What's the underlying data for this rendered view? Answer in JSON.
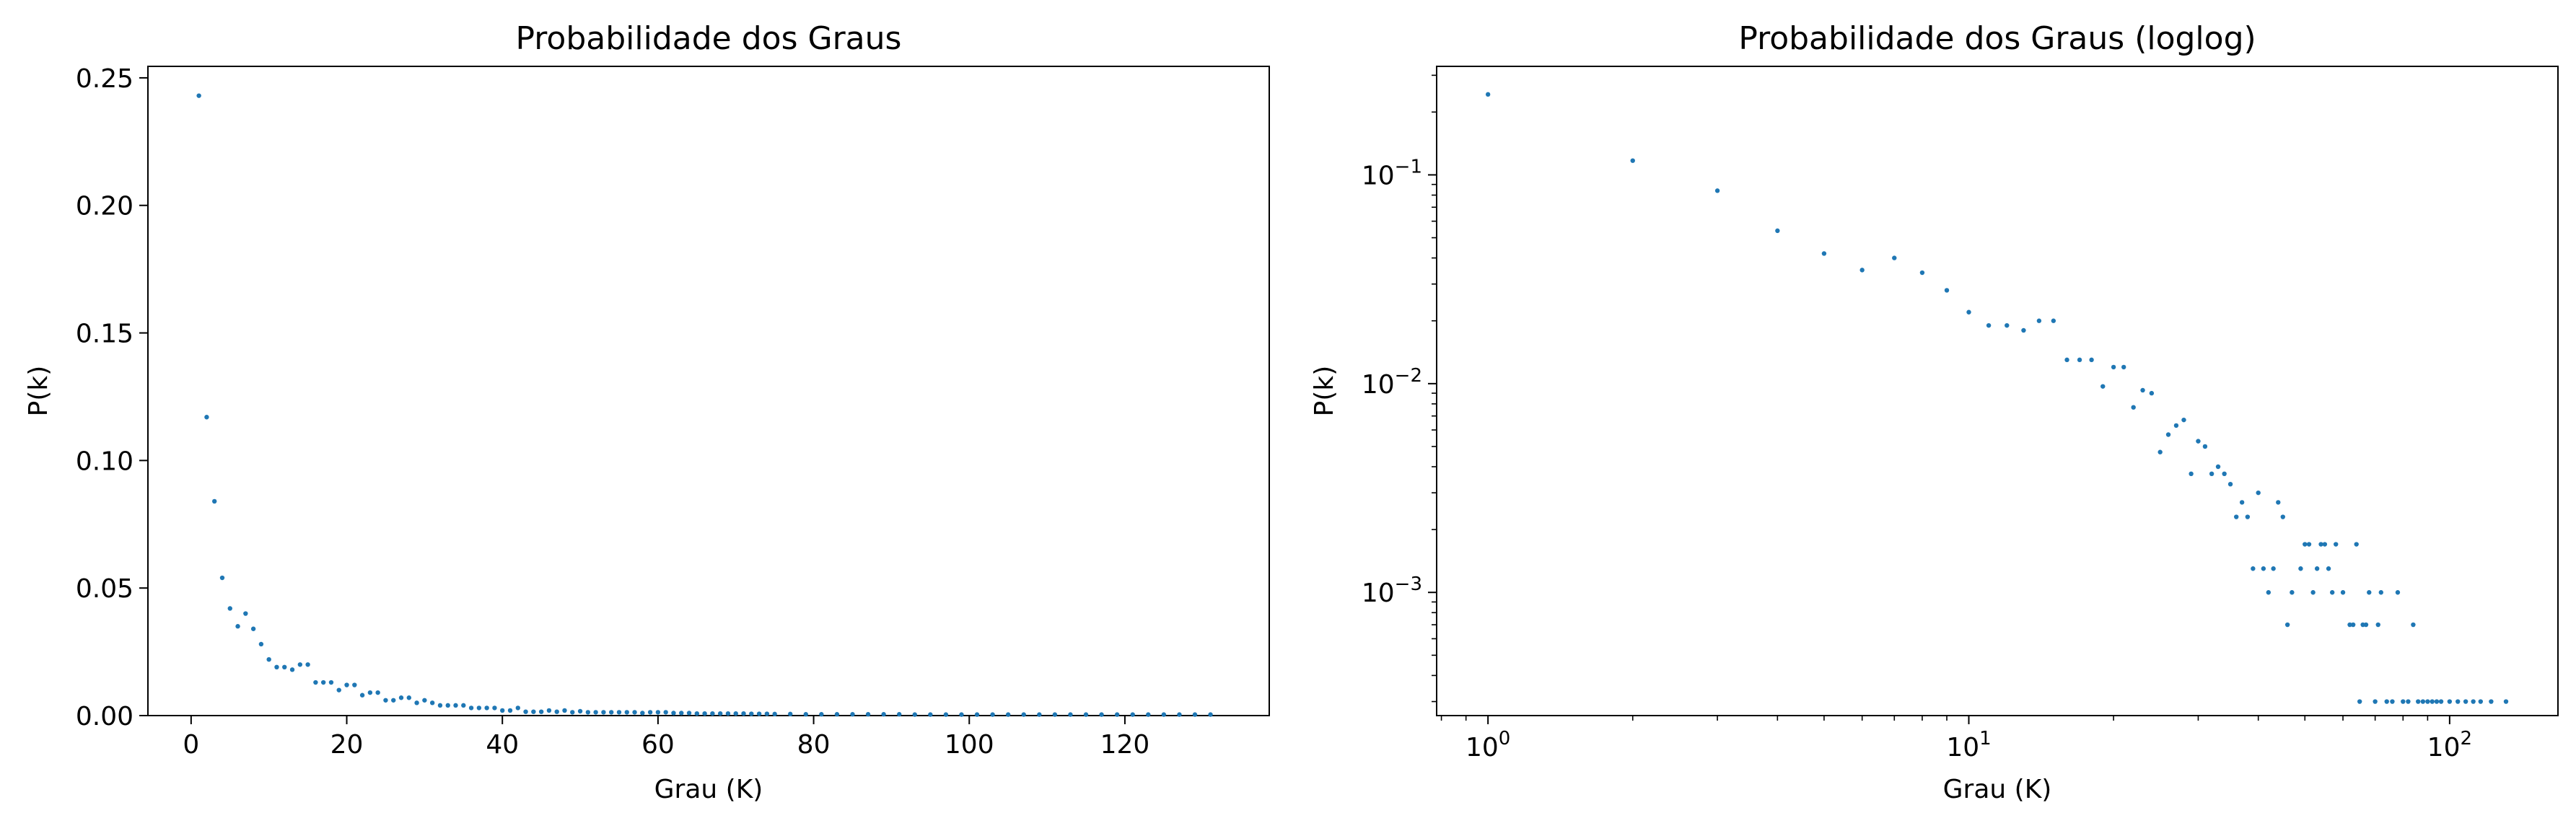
{
  "chart_data": [
    {
      "type": "scatter",
      "title": "Probabilidade dos Graus",
      "xlabel": "Grau (K)",
      "ylabel": "P(k)",
      "xscale": "linear",
      "yscale": "linear",
      "xlim": [
        -5.55,
        138.55
      ],
      "ylim": [
        0,
        0.2545
      ],
      "xticks": [
        0,
        20,
        40,
        60,
        80,
        100,
        120
      ],
      "xtick_labels": [
        "0",
        "20",
        "40",
        "60",
        "80",
        "100",
        "120"
      ],
      "yticks": [
        0.0,
        0.05,
        0.1,
        0.15,
        0.2,
        0.25
      ],
      "ytick_labels": [
        "0.00",
        "0.05",
        "0.10",
        "0.15",
        "0.20",
        "0.25"
      ],
      "grid": false,
      "legend": "none",
      "marker_color": "#1f77b4",
      "series": [
        {
          "x": [
            1,
            2,
            3,
            4,
            5,
            6,
            7,
            8,
            9,
            10,
            11,
            12,
            13,
            14,
            15,
            16,
            17,
            18,
            19,
            20,
            21,
            22,
            23,
            24,
            25,
            26,
            27,
            28,
            29,
            30,
            31,
            32,
            33,
            34,
            35,
            36,
            37,
            38,
            39,
            40,
            41,
            42,
            43,
            44,
            45,
            46,
            47,
            48,
            49,
            50,
            51,
            52,
            53,
            54,
            55,
            56,
            57,
            58,
            59,
            60,
            61,
            62,
            63,
            64,
            65,
            66,
            67,
            68,
            69,
            70,
            71,
            72,
            73,
            74,
            75,
            77,
            79,
            81,
            83,
            85,
            87,
            89,
            91,
            93,
            95,
            97,
            99,
            101,
            103,
            105,
            107,
            109,
            111,
            113,
            115,
            117,
            119,
            121,
            123,
            125,
            127,
            129,
            131
          ],
          "y": [
            0.243,
            0.117,
            0.084,
            0.054,
            0.042,
            0.035,
            0.04,
            0.034,
            0.028,
            0.022,
            0.019,
            0.019,
            0.018,
            0.02,
            0.02,
            0.013,
            0.013,
            0.013,
            0.01,
            0.012,
            0.012,
            0.008,
            0.009,
            0.009,
            0.006,
            0.006,
            0.007,
            0.007,
            0.005,
            0.006,
            0.005,
            0.004,
            0.004,
            0.004,
            0.004,
            0.003,
            0.003,
            0.003,
            0.003,
            0.002,
            0.002,
            0.003,
            0.0015,
            0.0015,
            0.0015,
            0.002,
            0.0015,
            0.002,
            0.0013,
            0.0017,
            0.0013,
            0.0013,
            0.0013,
            0.0013,
            0.0013,
            0.0013,
            0.0013,
            0.001,
            0.0013,
            0.0013,
            0.0013,
            0.001,
            0.001,
            0.001,
            0.0008,
            0.0008,
            0.0008,
            0.0008,
            0.0008,
            0.0008,
            0.0008,
            0.0007,
            0.0007,
            0.0007,
            0.0006,
            0.0006,
            0.0005,
            0.0005,
            0.0005,
            0.0005,
            0.0005,
            0.0005,
            0.0005,
            0.0004,
            0.0004,
            0.0004,
            0.0004,
            0.0004,
            0.0004,
            0.0004,
            0.0004,
            0.0004,
            0.0004,
            0.0004,
            0.0004,
            0.0004,
            0.0004,
            0.0004,
            0.0004,
            0.0004,
            0.0004,
            0.0004,
            0.0004
          ]
        }
      ]
    },
    {
      "type": "scatter",
      "title": "Probabilidade dos Graus (loglog)",
      "xlabel": "Grau (K)",
      "ylabel": "P(k)",
      "xscale": "log",
      "yscale": "log",
      "xlim": [
        0.782,
        168.0
      ],
      "ylim": [
        0.000257,
        0.331
      ],
      "xticks": [
        1,
        10,
        100
      ],
      "xtick_labels": [
        {
          "base": "10",
          "exp": "0"
        },
        {
          "base": "10",
          "exp": "1"
        },
        {
          "base": "10",
          "exp": "2"
        }
      ],
      "yticks": [
        0.001,
        0.01,
        0.1
      ],
      "ytick_labels": [
        {
          "base": "10",
          "exp": "−3"
        },
        {
          "base": "10",
          "exp": "−2"
        },
        {
          "base": "10",
          "exp": "−1"
        }
      ],
      "grid": false,
      "legend": "none",
      "marker_color": "#1f77b4",
      "series": [
        {
          "x": [
            1,
            2,
            3,
            4,
            5,
            6,
            7,
            8,
            9,
            10,
            11,
            12,
            13,
            14,
            15,
            16,
            17,
            18,
            19,
            20,
            21,
            22,
            23,
            24,
            25,
            26,
            27,
            28,
            29,
            30,
            31,
            32,
            33,
            34,
            35,
            36,
            37,
            38,
            39,
            40,
            41,
            42,
            43,
            44,
            45,
            46,
            47,
            49,
            50,
            51,
            52,
            53,
            54,
            55,
            56,
            57,
            58,
            60,
            62,
            63,
            64,
            65,
            66,
            67,
            68,
            70,
            71,
            72,
            74,
            76,
            78,
            80,
            82,
            84,
            86,
            88,
            90,
            92,
            94,
            96,
            100,
            104,
            108,
            112,
            116,
            122,
            131
          ],
          "y": [
            0.243,
            0.117,
            0.084,
            0.054,
            0.042,
            0.035,
            0.04,
            0.034,
            0.028,
            0.022,
            0.019,
            0.019,
            0.018,
            0.02,
            0.02,
            0.013,
            0.013,
            0.013,
            0.0097,
            0.012,
            0.012,
            0.0077,
            0.0093,
            0.009,
            0.0047,
            0.0057,
            0.0063,
            0.0067,
            0.0037,
            0.0053,
            0.005,
            0.0037,
            0.004,
            0.0037,
            0.0033,
            0.0023,
            0.0027,
            0.0023,
            0.0013,
            0.003,
            0.0013,
            0.001,
            0.0013,
            0.0027,
            0.0023,
            0.0007,
            0.001,
            0.0013,
            0.0017,
            0.0017,
            0.001,
            0.0013,
            0.0017,
            0.0017,
            0.0013,
            0.001,
            0.0017,
            0.001,
            0.0007,
            0.0007,
            0.0017,
            0.0003,
            0.0007,
            0.0007,
            0.001,
            0.0003,
            0.0007,
            0.001,
            0.0003,
            0.0003,
            0.001,
            0.0003,
            0.0003,
            0.0007,
            0.0003,
            0.0003,
            0.0003,
            0.0003,
            0.0003,
            0.0003,
            0.0003,
            0.0003,
            0.0003,
            0.0003,
            0.0003,
            0.0003,
            0.0003
          ]
        }
      ]
    }
  ]
}
